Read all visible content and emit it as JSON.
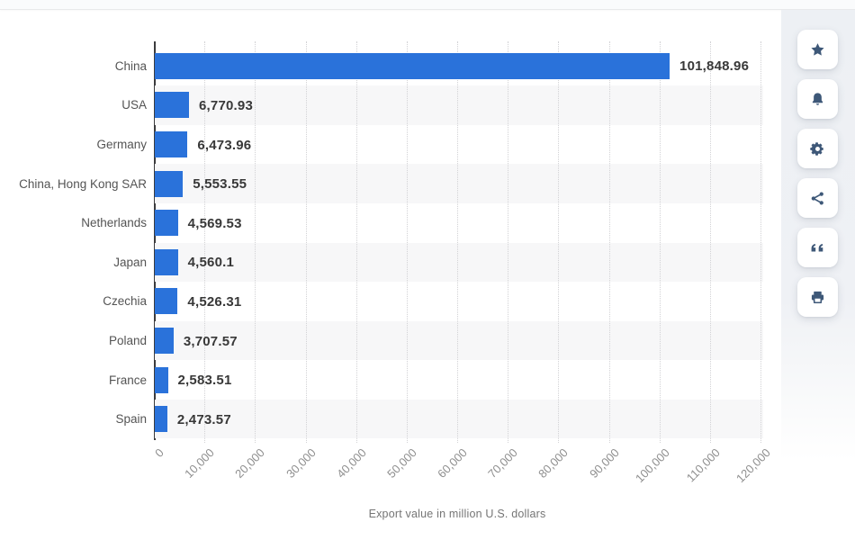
{
  "chart_data": {
    "type": "bar",
    "orientation": "horizontal",
    "title": "",
    "categories": [
      "China",
      "USA",
      "Germany",
      "China, Hong Kong SAR",
      "Netherlands",
      "Japan",
      "Czechia",
      "Poland",
      "France",
      "Spain"
    ],
    "values": [
      101848.96,
      6770.93,
      6473.96,
      5553.55,
      4569.53,
      4560.1,
      4526.31,
      3707.57,
      2583.51,
      2473.57
    ],
    "value_labels": [
      "101,848.96",
      "6,770.93",
      "6,473.96",
      "5,553.55",
      "4,569.53",
      "4,560.1",
      "4,526.31",
      "3,707.57",
      "2,583.51",
      "2,473.57"
    ],
    "xlabel": "Export value in million U.S. dollars",
    "ylabel": "",
    "xlim": [
      0,
      120000
    ],
    "xticks": [
      0,
      10000,
      20000,
      30000,
      40000,
      50000,
      60000,
      70000,
      80000,
      90000,
      100000,
      110000,
      120000
    ],
    "xtick_labels": [
      "0",
      "10,000",
      "20,000",
      "30,000",
      "40,000",
      "50,000",
      "60,000",
      "70,000",
      "80,000",
      "90,000",
      "100,000",
      "110,000",
      "120,000"
    ],
    "grid": true,
    "legend": "none",
    "bar_color": "#2a72da",
    "stripe_color": "#f7f7f8"
  },
  "toolbar": {
    "icon_color": "#3e5878",
    "buttons": [
      {
        "name": "favorite",
        "icon": "star-icon"
      },
      {
        "name": "alert",
        "icon": "bell-icon"
      },
      {
        "name": "settings",
        "icon": "gear-icon"
      },
      {
        "name": "share",
        "icon": "share-icon"
      },
      {
        "name": "cite",
        "icon": "quote-icon"
      },
      {
        "name": "print",
        "icon": "printer-icon"
      }
    ]
  },
  "colors": {
    "bar": "#2a72da",
    "row_stripe": "#f7f7f8",
    "axis_line": "#3b3b3d",
    "toolbar_icon": "#3e5878",
    "value_text": "#383838",
    "category_text": "#545454",
    "tick_text": "#8f8f8f"
  }
}
